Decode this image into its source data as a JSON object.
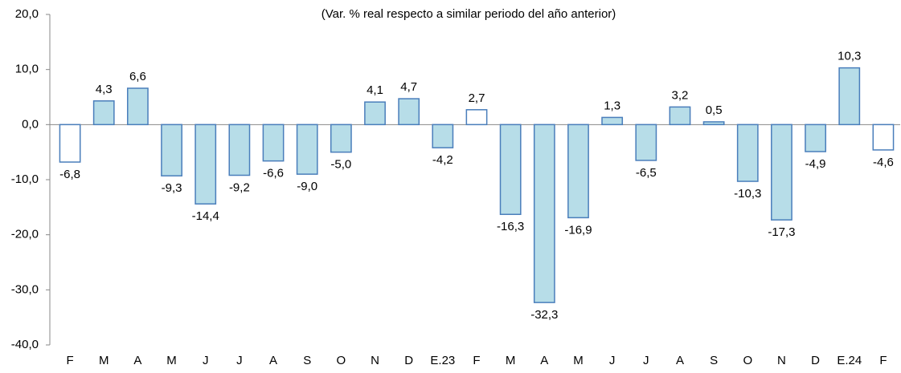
{
  "chart_data": {
    "type": "bar",
    "title": "(Var. % real respecto a similar periodo del año anterior)",
    "categories": [
      "F",
      "M",
      "A",
      "M",
      "J",
      "J",
      "A",
      "S",
      "O",
      "N",
      "D",
      "E.23",
      "F",
      "M",
      "A",
      "M",
      "J",
      "J",
      "A",
      "S",
      "O",
      "N",
      "D",
      "E.24",
      "F"
    ],
    "values": [
      -6.8,
      4.3,
      6.6,
      -9.3,
      -14.4,
      -9.2,
      -6.6,
      -9.0,
      -5.0,
      4.1,
      4.7,
      -4.2,
      2.7,
      -16.3,
      -32.3,
      -16.9,
      1.3,
      -6.5,
      3.2,
      0.5,
      -10.3,
      -17.3,
      -4.9,
      10.3,
      -4.6
    ],
    "value_labels": [
      "-6,8",
      "4,3",
      "6,6",
      "-9,3",
      "-14,4",
      "-9,2",
      "-6,6",
      "-9,0",
      "-5,0",
      "4,1",
      "4,7",
      "-4,2",
      "2,7",
      "-16,3",
      "-32,3",
      "-16,9",
      "1,3",
      "-6,5",
      "3,2",
      "0,5",
      "-10,3",
      "-17,3",
      "-4,9",
      "10,3",
      "-4,6"
    ],
    "colors": [
      "#ffffff",
      "#b7dde8",
      "#b7dde8",
      "#b7dde8",
      "#b7dde8",
      "#b7dde8",
      "#b7dde8",
      "#b7dde8",
      "#b7dde8",
      "#b7dde8",
      "#b7dde8",
      "#b7dde8",
      "#ffffff",
      "#b7dde8",
      "#b7dde8",
      "#b7dde8",
      "#b7dde8",
      "#b7dde8",
      "#b7dde8",
      "#b7dde8",
      "#b7dde8",
      "#b7dde8",
      "#b7dde8",
      "#b7dde8",
      "#ffffff"
    ],
    "border_color": "#4a7ebb",
    "ylim": [
      -40,
      20
    ],
    "yticks": [
      {
        "value": -40,
        "label": "-40,0"
      },
      {
        "value": -30,
        "label": "-30,0"
      },
      {
        "value": -20,
        "label": "-20,0"
      },
      {
        "value": -10,
        "label": "-10,0"
      },
      {
        "value": 0,
        "label": "0,0"
      },
      {
        "value": 10,
        "label": "10,0"
      },
      {
        "value": 20,
        "label": "20,0"
      }
    ]
  }
}
